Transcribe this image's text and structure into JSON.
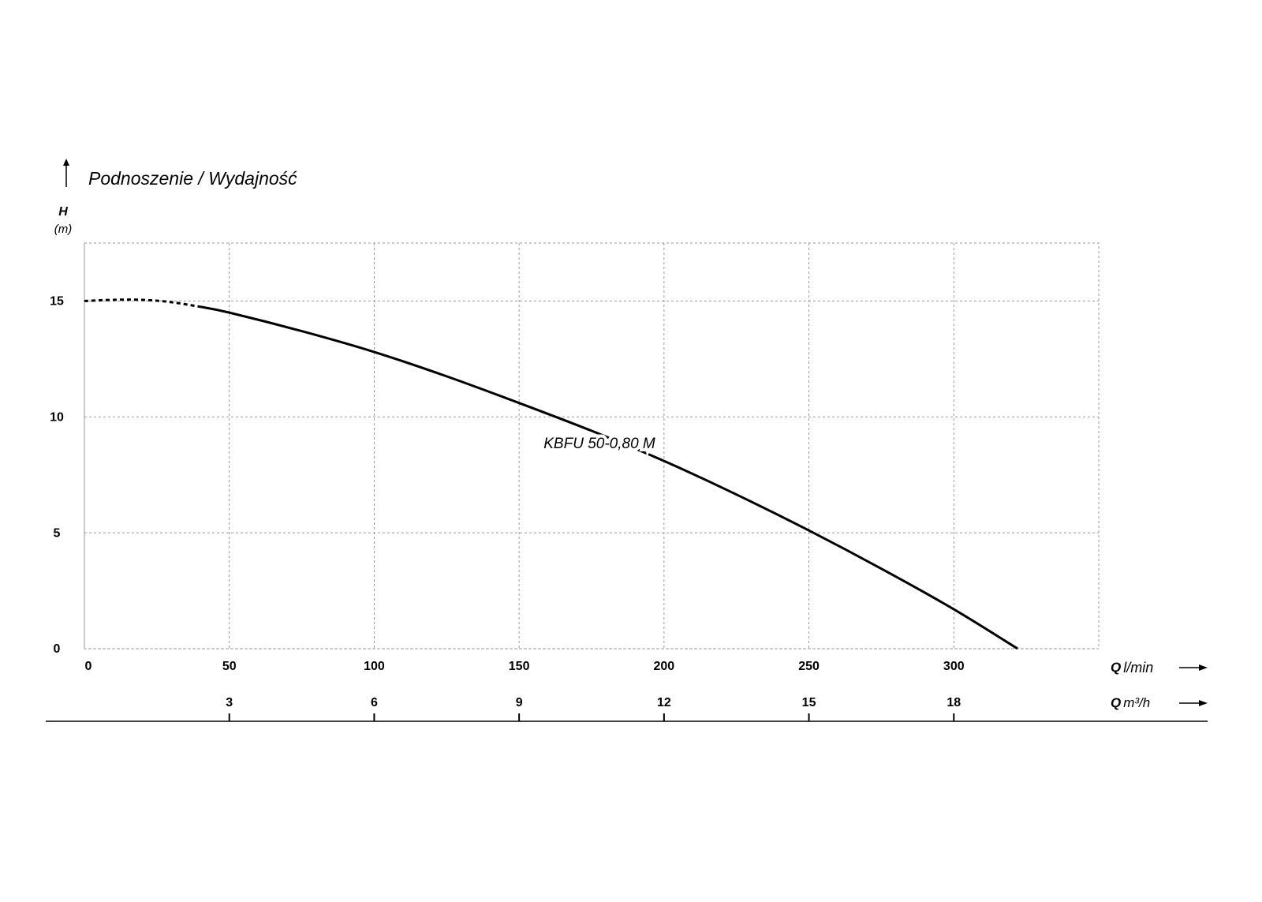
{
  "chart_data": {
    "type": "line",
    "title": "Podnoszenie / Wydajność",
    "ylabel": {
      "symbol": "H",
      "unit": "(m)"
    },
    "xlabel": {
      "symbol": "Q",
      "unit": "l/min"
    },
    "x2label": {
      "symbol": "Q",
      "unit": "m³/h"
    },
    "x": [
      0,
      10,
      20,
      30,
      40,
      50,
      75,
      100,
      125,
      150,
      175,
      200,
      225,
      250,
      275,
      300,
      322
    ],
    "series": [
      {
        "name": "KBFU 50-0,80 M",
        "color": "#000000",
        "values": [
          15,
          15.05,
          15.05,
          14.95,
          14.75,
          14.5,
          13.7,
          12.8,
          11.75,
          10.6,
          9.4,
          8.1,
          6.65,
          5.1,
          3.45,
          1.7,
          0
        ],
        "dashed_below_x": 40
      }
    ],
    "xlim": [
      0,
      350
    ],
    "xticks": [
      0,
      50,
      100,
      150,
      200,
      250,
      300
    ],
    "x2lim": [
      0,
      21
    ],
    "x2ticks": [
      3,
      6,
      9,
      12,
      15,
      18
    ],
    "ylim": [
      0,
      17.5
    ],
    "yticks": [
      0,
      5,
      10,
      15
    ],
    "grid": true
  }
}
